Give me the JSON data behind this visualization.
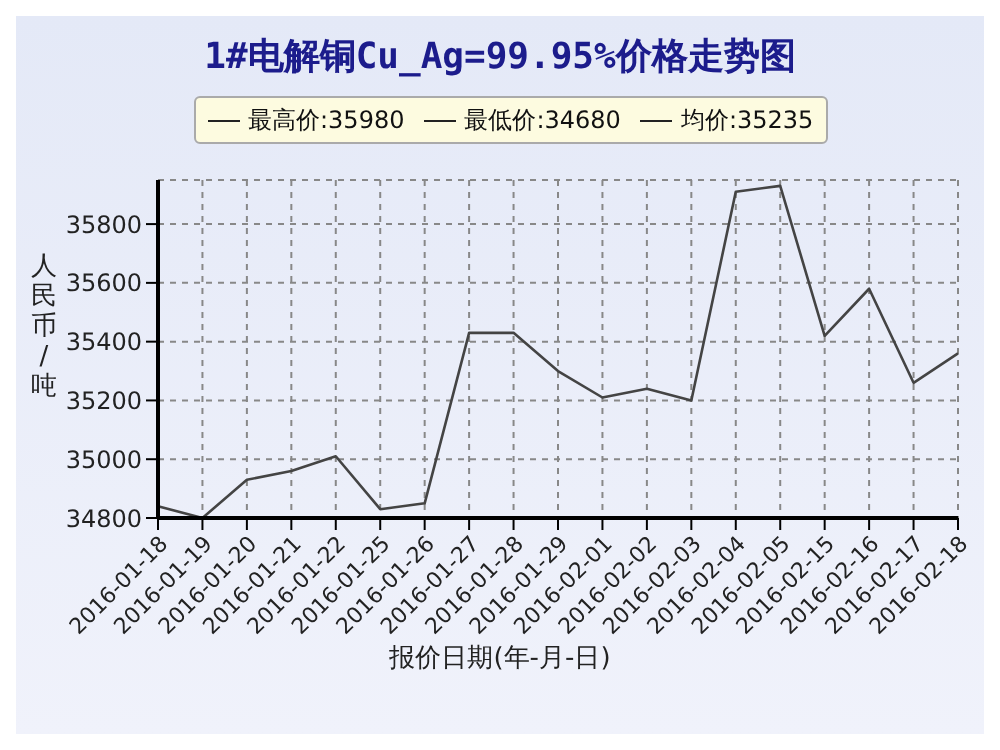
{
  "chart_data": {
    "type": "line",
    "title": "1#电解铜Cu_Ag=99.95%价格走势图",
    "xlabel": "报价日期(年-月-日)",
    "ylabel": "人民币/吨",
    "annotations": [
      "最高价:35980",
      "最低价:34680",
      "均价:35235"
    ],
    "categories": [
      "2016-01-18",
      "2016-01-19",
      "2016-01-20",
      "2016-01-21",
      "2016-01-22",
      "2016-01-25",
      "2016-01-26",
      "2016-01-27",
      "2016-01-28",
      "2016-01-29",
      "2016-02-01",
      "2016-02-02",
      "2016-02-03",
      "2016-02-04",
      "2016-02-05",
      "2016-02-15",
      "2016-02-16",
      "2016-02-17",
      "2016-02-18"
    ],
    "series": [
      {
        "color": "#444444",
        "values": [
          34840,
          34800,
          34930,
          34960,
          35010,
          34830,
          34850,
          35430,
          35430,
          35300,
          35210,
          35240,
          35200,
          35910,
          35930,
          35420,
          35580,
          35260,
          35360
        ]
      }
    ],
    "ylim": [
      34800,
      35950
    ],
    "yticks": [
      34800,
      35000,
      35200,
      35400,
      35600,
      35800
    ],
    "grid": true,
    "marker": "none",
    "line_style": "solid"
  }
}
